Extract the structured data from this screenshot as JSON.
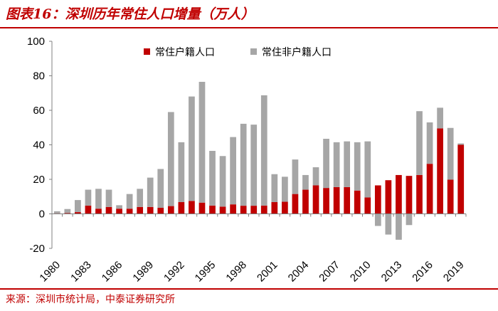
{
  "header": {
    "title": "图表16：深圳历年常住人口增量（万人）"
  },
  "footer": {
    "source": "来源：深圳市统计局，中泰证券研究所"
  },
  "colors": {
    "accent": "#c00000",
    "registered": "#c00000",
    "non_registered": "#a6a6a6"
  },
  "chart_data": {
    "type": "bar",
    "stacked": true,
    "title": "图表16：深圳历年常住人口增量（万人）",
    "xlabel": "",
    "ylabel": "",
    "ylim": [
      -20,
      100
    ],
    "yticks": [
      -20,
      0,
      20,
      40,
      60,
      80,
      100
    ],
    "grid": false,
    "legend_position": "top",
    "categories": [
      "1980",
      "1981",
      "1982",
      "1983",
      "1984",
      "1985",
      "1986",
      "1987",
      "1988",
      "1989",
      "1990",
      "1991",
      "1992",
      "1993",
      "1994",
      "1995",
      "1996",
      "1997",
      "1998",
      "1999",
      "2000",
      "2001",
      "2002",
      "2003",
      "2004",
      "2005",
      "2006",
      "2007",
      "2008",
      "2009",
      "2010",
      "2011",
      "2012",
      "2013",
      "2014",
      "2015",
      "2016",
      "2017",
      "2018",
      "2019"
    ],
    "xtick_labels": [
      "1980",
      "1983",
      "1986",
      "1989",
      "1992",
      "1995",
      "1998",
      "2001",
      "2004",
      "2007",
      "2010",
      "2013",
      "2016",
      "2019"
    ],
    "series": [
      {
        "name": "常住户籍人口",
        "values": [
          0.3,
          0.5,
          1.0,
          4.8,
          3.0,
          4.0,
          3.0,
          3.0,
          4.0,
          4.0,
          3.5,
          4.5,
          6.8,
          7.5,
          6.5,
          4.8,
          4.2,
          5.5,
          4.7,
          4.7,
          4.8,
          6.8,
          7.0,
          11.5,
          14.0,
          16.5,
          15.0,
          15.5,
          15.5,
          13.5,
          9.5,
          16.5,
          19.5,
          22.5,
          22.0,
          22.5,
          29.0,
          49.5,
          19.8,
          40.0
        ]
      },
      {
        "name": "常住非户籍人口",
        "values": [
          1.2,
          2.3,
          7.0,
          9.2,
          11.5,
          10.0,
          2.0,
          8.5,
          10.5,
          17.0,
          22.5,
          54.5,
          34.7,
          60.5,
          70.0,
          31.7,
          29.3,
          39.0,
          47.5,
          47.0,
          63.9,
          16.2,
          14.5,
          20.0,
          8.5,
          10.5,
          28.5,
          26.0,
          26.5,
          28.0,
          32.5,
          -7.0,
          -12.0,
          -15.0,
          -6.5,
          37.0,
          24.0,
          12.0,
          30.0,
          0.8
        ]
      }
    ]
  }
}
